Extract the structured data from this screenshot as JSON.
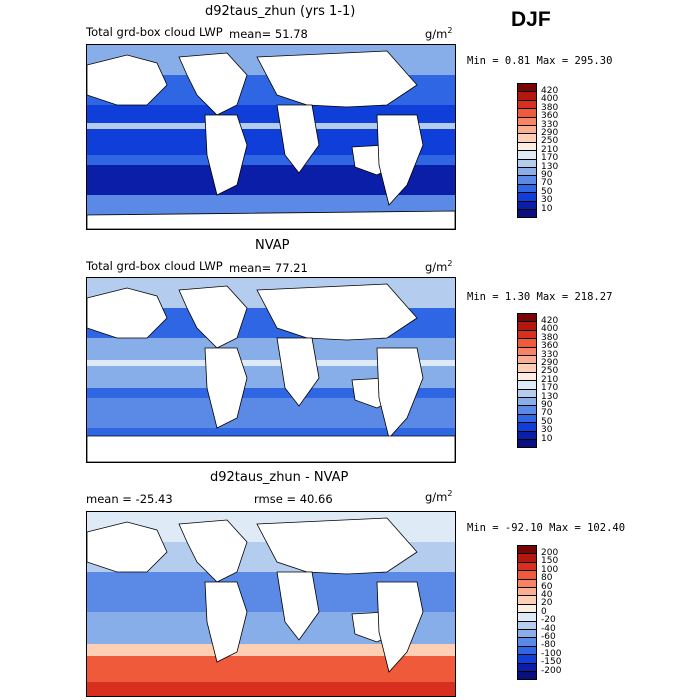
{
  "season": "DJF",
  "panels": [
    {
      "title": "d92taus_zhun (yrs 1-1)",
      "left_label": "Total grd-box cloud LWP",
      "stat": "mean=  51.78",
      "stat2": "",
      "units_base": "g/m",
      "units_exp": "2",
      "minmax": "Min =   0.81 Max = 295.30",
      "legend": {
        "labels": [
          "420",
          "400",
          "380",
          "360",
          "330",
          "290",
          "250",
          "210",
          "170",
          "130",
          "90",
          "70",
          "50",
          "30",
          "10"
        ],
        "colors": [
          "#7a0403",
          "#b2180e",
          "#d7301f",
          "#ef5a3a",
          "#f88462",
          "#fcae91",
          "#fdd0b5",
          "#fdeee2",
          "#deebf7",
          "#b4cdee",
          "#88aeea",
          "#5a8ae6",
          "#2f66e3",
          "#0f3ed9",
          "#0a1ea8",
          "#081080"
        ]
      },
      "chart_data": {
        "type": "heatmap",
        "title": "d92taus_zhun (yrs 1-1)",
        "variable": "Total grd-box cloud LWP",
        "mean": 51.78,
        "min": 0.81,
        "max": 295.3,
        "units": "g/m2"
      }
    },
    {
      "title": "NVAP",
      "left_label": "Total grd-box cloud LWP",
      "stat": "mean=  77.21",
      "stat2": "",
      "units_base": "g/m",
      "units_exp": "2",
      "minmax": "Min =   1.30 Max = 218.27",
      "legend": {
        "labels": [
          "420",
          "400",
          "380",
          "360",
          "330",
          "290",
          "250",
          "210",
          "170",
          "130",
          "90",
          "70",
          "50",
          "30",
          "10"
        ],
        "colors": [
          "#7a0403",
          "#b2180e",
          "#d7301f",
          "#ef5a3a",
          "#f88462",
          "#fcae91",
          "#fdd0b5",
          "#fdeee2",
          "#deebf7",
          "#b4cdee",
          "#88aeea",
          "#5a8ae6",
          "#2f66e3",
          "#0f3ed9",
          "#0a1ea8",
          "#081080"
        ]
      },
      "chart_data": {
        "type": "heatmap",
        "title": "NVAP",
        "variable": "Total grd-box cloud LWP",
        "mean": 77.21,
        "min": 1.3,
        "max": 218.27,
        "units": "g/m2"
      }
    },
    {
      "title": "d92taus_zhun - NVAP",
      "left_label": "mean = -25.43",
      "stat": "rmse =  40.66",
      "stat2": "",
      "units_base": "g/m",
      "units_exp": "2",
      "minmax": "Min = -92.10 Max = 102.40",
      "legend": {
        "labels": [
          "200",
          "150",
          "100",
          "80",
          "60",
          "40",
          "20",
          "0",
          "-20",
          "-40",
          "-60",
          "-80",
          "-100",
          "-150",
          "-200"
        ],
        "colors": [
          "#7a0403",
          "#b2180e",
          "#d7301f",
          "#ef5a3a",
          "#f88462",
          "#fcae91",
          "#fdd0b5",
          "#fdeee2",
          "#deebf7",
          "#b4cdee",
          "#88aeea",
          "#5a8ae6",
          "#2f66e3",
          "#0f3ed9",
          "#0a1ea8",
          "#081080"
        ]
      },
      "chart_data": {
        "type": "heatmap",
        "title": "d92taus_zhun - NVAP",
        "mean": -25.43,
        "rmse": 40.66,
        "min": -92.1,
        "max": 102.4,
        "units": "g/m2"
      }
    }
  ]
}
